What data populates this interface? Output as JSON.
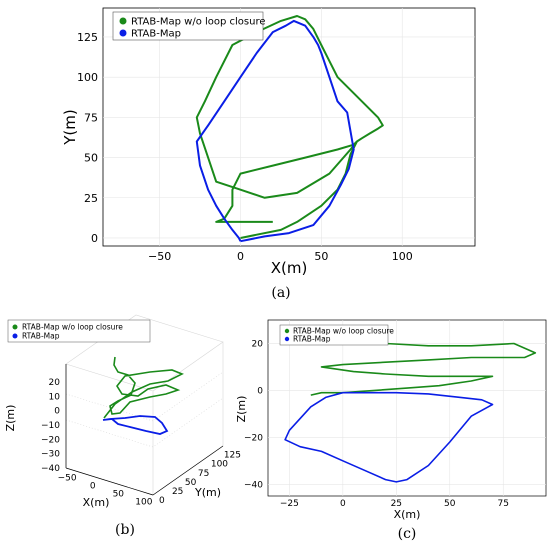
{
  "chart_data": [
    {
      "panel": "(a)",
      "type": "line",
      "xlabel": "X(m)",
      "ylabel": "Y(m)",
      "xlim": [
        -85,
        145
      ],
      "ylim": [
        -5,
        143
      ],
      "xticks": [
        -50,
        0,
        50,
        100
      ],
      "yticks": [
        0,
        25,
        50,
        75,
        100,
        125
      ],
      "grid": true,
      "legend": "top-left",
      "series": [
        {
          "name": "RTAB-Map w/o loop closure",
          "color": "#1a8a1a",
          "x": [
            0,
            10,
            25,
            35,
            50,
            60,
            65,
            68,
            72,
            68,
            55,
            35,
            15,
            0,
            -15,
            -25,
            -27,
            -22,
            -15,
            -5,
            10,
            25,
            35,
            40,
            45,
            50,
            55,
            60,
            70,
            85,
            88,
            85,
            80,
            75,
            72,
            70,
            60,
            40,
            20,
            0,
            -5,
            -5,
            -10,
            -15,
            -8,
            5,
            20
          ],
          "y": [
            0,
            2,
            5,
            10,
            20,
            30,
            40,
            52,
            60,
            55,
            40,
            28,
            25,
            30,
            35,
            65,
            75,
            85,
            100,
            120,
            128,
            135,
            138,
            136,
            130,
            120,
            110,
            100,
            90,
            75,
            70,
            68,
            65,
            62,
            60,
            58,
            55,
            50,
            45,
            40,
            30,
            20,
            12,
            10,
            10,
            10,
            10
          ]
        },
        {
          "name": "RTAB-Map",
          "color": "#0a1ee6",
          "x": [
            0,
            5,
            15,
            30,
            45,
            55,
            62,
            67,
            70,
            66,
            60,
            55,
            50,
            48,
            45,
            40,
            33,
            28,
            20,
            10,
            0,
            -10,
            -20,
            -27,
            -25,
            -20,
            -15,
            -10,
            -5,
            -1,
            0
          ],
          "y": [
            -2,
            -1,
            1,
            3,
            8,
            20,
            33,
            43,
            55,
            78,
            85,
            100,
            115,
            120,
            125,
            132,
            135,
            132,
            128,
            115,
            100,
            85,
            70,
            60,
            45,
            30,
            20,
            12,
            5,
            0,
            -2
          ]
        }
      ]
    },
    {
      "panel": "(b)",
      "type": "line",
      "projection": "3d",
      "xlabel": "X(m)",
      "ylabel": "Y(m)",
      "zlabel": "Z(m)",
      "xticks": [
        -50,
        0,
        50,
        100
      ],
      "yticks": [
        0,
        25,
        50,
        75,
        100,
        125
      ],
      "zticks": [
        -40,
        -30,
        -20,
        -10,
        0,
        10,
        20
      ],
      "legend": "top-left",
      "series": [
        {
          "name": "RTAB-Map w/o loop closure",
          "color": "#1a8a1a"
        },
        {
          "name": "RTAB-Map",
          "color": "#0a1ee6"
        }
      ]
    },
    {
      "panel": "(c)",
      "type": "line",
      "xlabel": "X(m)",
      "ylabel": "Z(m)",
      "xlim": [
        -35,
        95
      ],
      "ylim": [
        -45,
        30
      ],
      "xticks": [
        -25,
        0,
        25,
        50,
        75
      ],
      "yticks": [
        -40,
        -20,
        0,
        20
      ],
      "grid": true,
      "legend": "top-left",
      "series": [
        {
          "name": "RTAB-Map w/o loop closure",
          "color": "#1a8a1a",
          "x": [
            -15,
            0,
            20,
            40,
            60,
            80,
            90,
            85,
            60,
            40,
            20,
            0,
            -10,
            5,
            20,
            40,
            60,
            70,
            60,
            45,
            30,
            15,
            0,
            -10,
            -15
          ],
          "y": [
            25,
            23,
            20,
            19,
            19,
            20,
            16,
            14,
            14,
            13,
            12,
            11,
            10,
            8,
            7,
            6,
            6,
            6,
            4,
            2,
            1,
            0,
            -1,
            -1,
            -2
          ]
        },
        {
          "name": "RTAB-Map",
          "color": "#0a1ee6",
          "x": [
            0,
            10,
            25,
            40,
            55,
            65,
            70,
            68,
            60,
            50,
            40,
            30,
            25,
            20,
            10,
            0,
            -10,
            -20,
            -27,
            -25,
            -20,
            -15,
            -8,
            0
          ],
          "y": [
            -1,
            -1,
            -1,
            -1.5,
            -3,
            -4,
            -6,
            -7,
            -11,
            -22,
            -32,
            -38,
            -39,
            -38,
            -34,
            -30,
            -26,
            -24,
            -21,
            -17,
            -12,
            -7,
            -3,
            -1
          ]
        }
      ]
    }
  ],
  "captions": [
    "(a)",
    "(b)",
    "(c)"
  ]
}
